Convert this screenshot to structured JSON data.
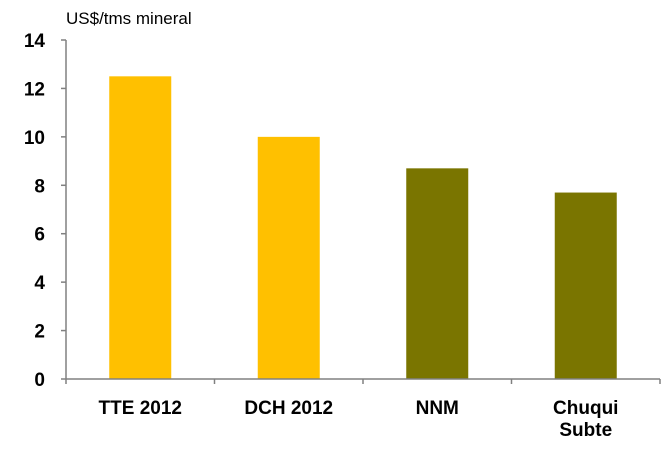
{
  "chart_data": {
    "type": "bar",
    "title": "",
    "xlabel": "",
    "ylabel": "US$/tms mineral",
    "ylim": [
      0,
      14
    ],
    "yticks": [
      0,
      2,
      4,
      6,
      8,
      10,
      12,
      14
    ],
    "grid": false,
    "legend": "none",
    "categories": [
      [
        "TTE 2012"
      ],
      [
        "DCH 2012"
      ],
      [
        "NNM"
      ],
      [
        "Chuqui",
        "Subte"
      ]
    ],
    "values": [
      12.5,
      10.0,
      8.7,
      7.7
    ],
    "colors": [
      "#FFC000",
      "#FFC000",
      "#7A7500",
      "#7A7500"
    ]
  }
}
